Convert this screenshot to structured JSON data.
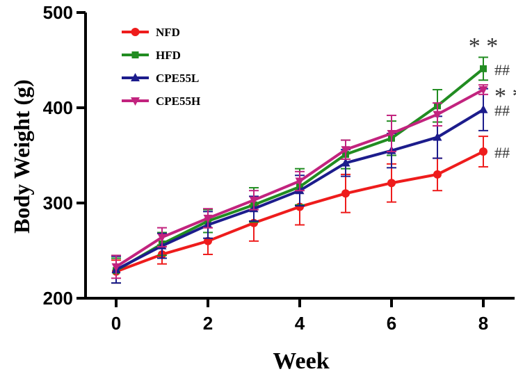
{
  "chart_data": {
    "type": "line",
    "title": "",
    "xlabel": "Week",
    "ylabel": "Body Weight (g)",
    "x": [
      0,
      1,
      2,
      3,
      4,
      5,
      6,
      7,
      8
    ],
    "xticks": [
      "0",
      "2",
      "4",
      "6",
      "8"
    ],
    "yticks": [
      "200",
      "300",
      "400",
      "500"
    ],
    "xlim": [
      0,
      8
    ],
    "ylim": [
      200,
      500
    ],
    "grid": false,
    "legend_position": "top-left",
    "series": [
      {
        "name": "NFD",
        "color": "#ee1c1c",
        "marker": "circle",
        "values": [
          228,
          246,
          260,
          279,
          296,
          310,
          321,
          330,
          354
        ],
        "errors": [
          12,
          10,
          14,
          19,
          19,
          20,
          20,
          17,
          16
        ]
      },
      {
        "name": "HFD",
        "color": "#218c21",
        "marker": "square",
        "values": [
          229,
          257,
          281,
          298,
          317,
          351,
          368,
          402,
          441
        ],
        "errors": [
          13,
          12,
          12,
          18,
          19,
          15,
          18,
          17,
          12
        ]
      },
      {
        "name": "CPE55L",
        "color": "#1c1c8c",
        "marker": "triangle",
        "values": [
          230,
          255,
          277,
          294,
          313,
          342,
          355,
          369,
          398
        ],
        "errors": [
          14,
          13,
          14,
          13,
          16,
          14,
          18,
          22,
          22
        ]
      },
      {
        "name": "CPE55H",
        "color": "#c2237e",
        "marker": "triangle-down",
        "values": [
          233,
          264,
          284,
          303,
          323,
          356,
          373,
          393,
          419
        ],
        "errors": [
          12,
          10,
          10,
          10,
          10,
          10,
          19,
          12,
          5
        ]
      }
    ],
    "annotations": [
      {
        "text": "* *",
        "series": "HFD",
        "position": "above-last"
      },
      {
        "text": "##",
        "series": "HFD",
        "position": "right-last"
      },
      {
        "text": "* *",
        "series": "CPE55H",
        "position": "right-last"
      },
      {
        "text": "##",
        "series": "CPE55L",
        "position": "right-last"
      },
      {
        "text": "##",
        "series": "NFD",
        "position": "right-last"
      }
    ]
  }
}
